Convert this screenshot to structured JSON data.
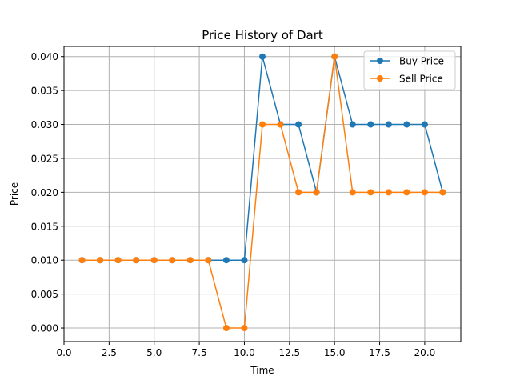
{
  "chart_data": {
    "type": "line",
    "title": "Price History of Dart",
    "xlabel": "Time",
    "ylabel": "Price",
    "x": [
      1,
      2,
      3,
      4,
      5,
      6,
      7,
      8,
      9,
      10,
      11,
      12,
      13,
      14,
      15,
      16,
      17,
      18,
      19,
      20,
      21
    ],
    "series": [
      {
        "name": "Buy Price",
        "color": "#1f77b4",
        "values": [
          0.01,
          0.01,
          0.01,
          0.01,
          0.01,
          0.01,
          0.01,
          0.01,
          0.01,
          0.01,
          0.04,
          0.03,
          0.03,
          0.02,
          0.04,
          0.03,
          0.03,
          0.03,
          0.03,
          0.03,
          0.02
        ]
      },
      {
        "name": "Sell Price",
        "color": "#ff7f0e",
        "values": [
          0.01,
          0.01,
          0.01,
          0.01,
          0.01,
          0.01,
          0.01,
          0.01,
          0.0,
          0.0,
          0.03,
          0.03,
          0.02,
          0.02,
          0.04,
          0.02,
          0.02,
          0.02,
          0.02,
          0.02,
          0.02
        ]
      }
    ],
    "xlim": [
      0.0,
      22.0
    ],
    "ylim": [
      -0.002,
      0.0415
    ],
    "xticks": [
      0.0,
      2.5,
      5.0,
      7.5,
      10.0,
      12.5,
      15.0,
      17.5,
      20.0
    ],
    "xtick_labels": [
      "0.0",
      "2.5",
      "5.0",
      "7.5",
      "10.0",
      "12.5",
      "15.0",
      "17.5",
      "20.0"
    ],
    "yticks": [
      0.0,
      0.005,
      0.01,
      0.015,
      0.02,
      0.025,
      0.03,
      0.035,
      0.04
    ],
    "ytick_labels": [
      "0.000",
      "0.005",
      "0.010",
      "0.015",
      "0.020",
      "0.025",
      "0.030",
      "0.035",
      "0.040"
    ],
    "grid": true,
    "legend": "top-right"
  }
}
